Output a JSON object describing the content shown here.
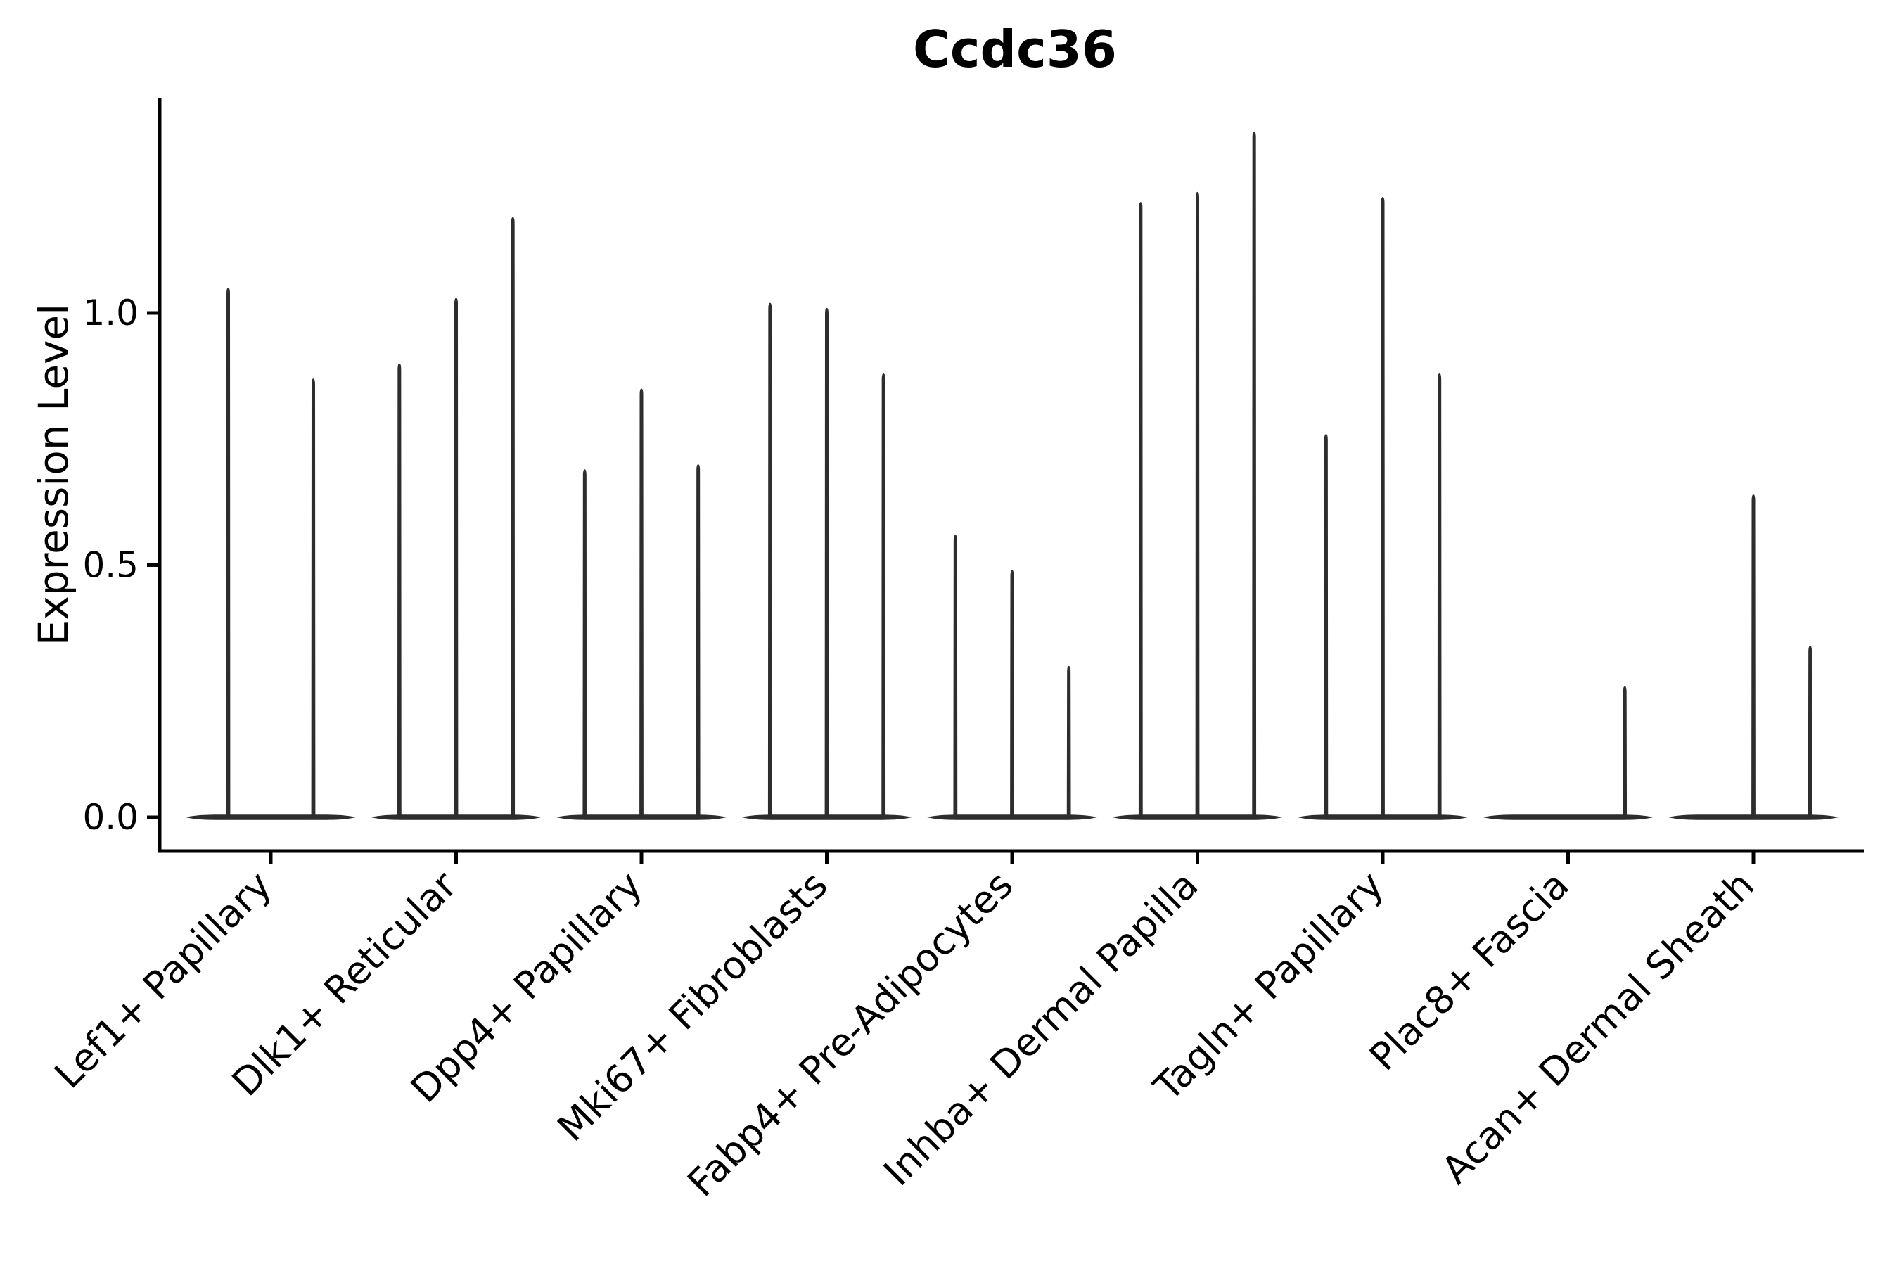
{
  "chart_data": {
    "type": "violin",
    "title": "Ccdc36",
    "xlabel": "",
    "ylabel": "Expression Level",
    "ylim": [
      -0.07,
      1.43
    ],
    "yticks": [
      "0.0",
      "0.5",
      "1.0"
    ],
    "ytick_values": [
      0.0,
      0.5,
      1.0
    ],
    "grid": false,
    "legend": "none",
    "categories": [
      "Lef1+ Papillary",
      "Dlk1+ Reticular",
      "Dpp4+ Papillary",
      "Mki67+ Fibroblasts",
      "Fabp4+ Pre-Adipocytes",
      "Inhba+ Dermal Papilla",
      "Tagln+ Papillary",
      "Plac8+ Fascia",
      "Acan+ Dermal Sheath"
    ],
    "groups": [
      {
        "category": "Lef1+ Papillary",
        "violin_maxima": [
          1.05,
          0.87
        ]
      },
      {
        "category": "Dlk1+ Reticular",
        "violin_maxima": [
          0.9,
          1.03,
          1.19
        ]
      },
      {
        "category": "Dpp4+ Papillary",
        "violin_maxima": [
          0.69,
          0.85,
          0.7
        ]
      },
      {
        "category": "Mki67+ Fibroblasts",
        "violin_maxima": [
          1.02,
          1.01,
          0.88
        ]
      },
      {
        "category": "Fabp4+ Pre-Adipocytes",
        "violin_maxima": [
          0.56,
          0.49,
          0.3
        ]
      },
      {
        "category": "Inhba+ Dermal Papilla",
        "violin_maxima": [
          1.22,
          1.24,
          1.36
        ]
      },
      {
        "category": "Tagln+ Papillary",
        "violin_maxima": [
          0.76,
          1.23,
          0.88
        ]
      },
      {
        "category": "Plac8+ Fascia",
        "violin_maxima": [
          0.0,
          0.0,
          0.26
        ]
      },
      {
        "category": "Acan+ Dermal Sheath",
        "violin_maxima": [
          0.0,
          0.64,
          0.34
        ]
      }
    ],
    "style": {
      "violin_color": "#2d2d2d",
      "axis_color": "#000000",
      "background": "#ffffff"
    }
  }
}
